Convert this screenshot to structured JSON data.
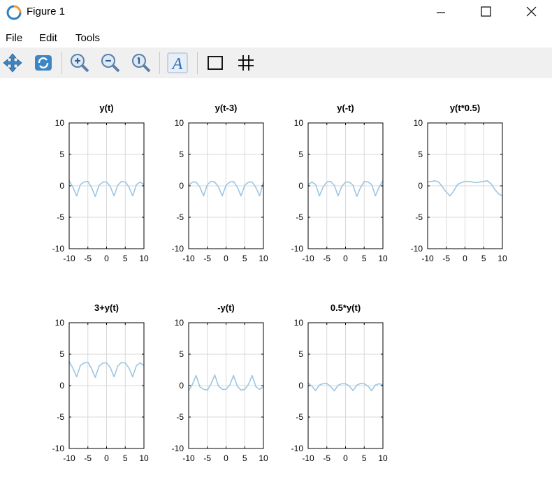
{
  "window": {
    "title": "Figure 1"
  },
  "menu": [
    "File",
    "Edit",
    "Tools"
  ],
  "toolbar": {
    "buttons": [
      "pan-icon",
      "rotate-icon",
      "zoom-in-icon",
      "zoom-out-icon",
      "zoom-reset-icon",
      "text-tool-icon",
      "box-toggle-icon",
      "grid-toggle-icon"
    ],
    "text_tool_glyph": "A"
  },
  "colors": {
    "line": "#9dc6e3",
    "grid": "#d9d9d9",
    "toolbar_bg": "#f0f0f0",
    "icon_blue": "#2f7fc4"
  },
  "chart_data": [
    {
      "type": "line",
      "title": "y(t)",
      "xlim": [
        -10,
        10
      ],
      "ylim": [
        -10,
        10
      ],
      "xticks": [
        "-10",
        "-5",
        "0",
        "5",
        "10"
      ],
      "yticks": [
        "10",
        "5",
        "0",
        "-5",
        "-10"
      ],
      "grid": true,
      "x": [
        -10,
        -9,
        -8,
        -7,
        -6,
        -5,
        -4,
        -3,
        -2,
        -1,
        0,
        1,
        2,
        3,
        4,
        5,
        6,
        7,
        8,
        9,
        10
      ],
      "y": [
        0.8,
        -0.2,
        -1.6,
        0.2,
        0.6,
        0.7,
        -0.3,
        -1.7,
        0.1,
        0.6,
        0.6,
        -0.1,
        -1.6,
        0.1,
        0.7,
        0.6,
        -0.2,
        -1.6,
        0.2,
        0.6,
        0.2
      ]
    },
    {
      "type": "line",
      "title": "y(t-3)",
      "xlim": [
        -10,
        10
      ],
      "ylim": [
        -10,
        10
      ],
      "xticks": [
        "-10",
        "-5",
        "0",
        "5",
        "10"
      ],
      "yticks": [
        "10",
        "5",
        "0",
        "-5",
        "-10"
      ],
      "grid": true,
      "x": [
        -10,
        -9,
        -8,
        -7,
        -6,
        -5,
        -4,
        -3,
        -2,
        -1,
        0,
        1,
        2,
        3,
        4,
        5,
        6,
        7,
        8,
        9,
        10
      ],
      "y": [
        0.1,
        0.6,
        0.6,
        -0.2,
        -1.6,
        0.2,
        0.7,
        0.6,
        -0.2,
        -1.6,
        0.1,
        0.6,
        0.7,
        -0.2,
        -1.6,
        0.1,
        0.6,
        0.6,
        -0.3,
        -1.6,
        0.6
      ]
    },
    {
      "type": "line",
      "title": "y(-t)",
      "xlim": [
        -10,
        10
      ],
      "ylim": [
        -10,
        10
      ],
      "xticks": [
        "-10",
        "-5",
        "0",
        "5",
        "10"
      ],
      "yticks": [
        "10",
        "5",
        "0",
        "-5",
        "-10"
      ],
      "grid": true,
      "x": [
        -10,
        -9,
        -8,
        -7,
        -6,
        -5,
        -4,
        -3,
        -2,
        -1,
        0,
        1,
        2,
        3,
        4,
        5,
        6,
        7,
        8,
        9,
        10
      ],
      "y": [
        0.2,
        0.6,
        0.2,
        -1.6,
        -0.2,
        0.6,
        0.7,
        0.1,
        -1.6,
        -0.1,
        0.6,
        0.6,
        0.1,
        -1.7,
        -0.3,
        0.7,
        0.6,
        0.2,
        -1.6,
        -0.2,
        0.8
      ]
    },
    {
      "type": "line",
      "title": "y(t*0.5)",
      "xlim": [
        -10,
        10
      ],
      "ylim": [
        -10,
        10
      ],
      "xticks": [
        "-10",
        "-5",
        "0",
        "5",
        "10"
      ],
      "yticks": [
        "10",
        "5",
        "0",
        "-5",
        "-10"
      ],
      "grid": true,
      "x": [
        -10,
        -9,
        -8,
        -7,
        -6,
        -5,
        -4,
        -3,
        -2,
        -1,
        0,
        1,
        2,
        3,
        4,
        5,
        6,
        7,
        8,
        9,
        10
      ],
      "y": [
        0.6,
        0.7,
        0.8,
        0.6,
        -0.2,
        -1.0,
        -1.6,
        -0.8,
        0.2,
        0.5,
        0.7,
        0.7,
        0.6,
        0.5,
        0.6,
        0.7,
        0.8,
        0.3,
        -0.6,
        -1.3,
        -1.6
      ]
    },
    {
      "type": "line",
      "title": "3+y(t)",
      "xlim": [
        -10,
        10
      ],
      "ylim": [
        -10,
        10
      ],
      "xticks": [
        "-10",
        "-5",
        "0",
        "5",
        "10"
      ],
      "yticks": [
        "10",
        "5",
        "0",
        "-5",
        "-10"
      ],
      "grid": true,
      "x": [
        -10,
        -9,
        -8,
        -7,
        -6,
        -5,
        -4,
        -3,
        -2,
        -1,
        0,
        1,
        2,
        3,
        4,
        5,
        6,
        7,
        8,
        9,
        10
      ],
      "y": [
        3.8,
        2.8,
        1.4,
        3.2,
        3.6,
        3.7,
        2.7,
        1.3,
        3.1,
        3.6,
        3.6,
        2.9,
        1.4,
        3.1,
        3.7,
        3.6,
        2.8,
        1.4,
        3.2,
        3.6,
        3.2
      ]
    },
    {
      "type": "line",
      "title": "-y(t)",
      "xlim": [
        -10,
        10
      ],
      "ylim": [
        -10,
        10
      ],
      "xticks": [
        "-10",
        "-5",
        "0",
        "5",
        "10"
      ],
      "yticks": [
        "10",
        "5",
        "0",
        "-5",
        "-10"
      ],
      "grid": true,
      "x": [
        -10,
        -9,
        -8,
        -7,
        -6,
        -5,
        -4,
        -3,
        -2,
        -1,
        0,
        1,
        2,
        3,
        4,
        5,
        6,
        7,
        8,
        9,
        10
      ],
      "y": [
        -0.8,
        0.2,
        1.6,
        -0.2,
        -0.6,
        -0.7,
        0.3,
        1.7,
        -0.1,
        -0.6,
        -0.6,
        0.1,
        1.6,
        -0.1,
        -0.7,
        -0.6,
        0.2,
        1.6,
        -0.2,
        -0.6,
        -0.2
      ]
    },
    {
      "type": "line",
      "title": "0.5*y(t)",
      "xlim": [
        -10,
        10
      ],
      "ylim": [
        -10,
        10
      ],
      "xticks": [
        "-10",
        "-5",
        "0",
        "5",
        "10"
      ],
      "yticks": [
        "10",
        "5",
        "0",
        "-5",
        "-10"
      ],
      "grid": true,
      "x": [
        -10,
        -9,
        -8,
        -7,
        -6,
        -5,
        -4,
        -3,
        -2,
        -1,
        0,
        1,
        2,
        3,
        4,
        5,
        6,
        7,
        8,
        9,
        10
      ],
      "y": [
        0.4,
        -0.1,
        -0.8,
        0.1,
        0.3,
        0.35,
        -0.15,
        -0.85,
        0.05,
        0.3,
        0.3,
        -0.05,
        -0.8,
        0.05,
        0.35,
        0.3,
        -0.1,
        -0.8,
        0.1,
        0.3,
        0.1
      ]
    }
  ]
}
